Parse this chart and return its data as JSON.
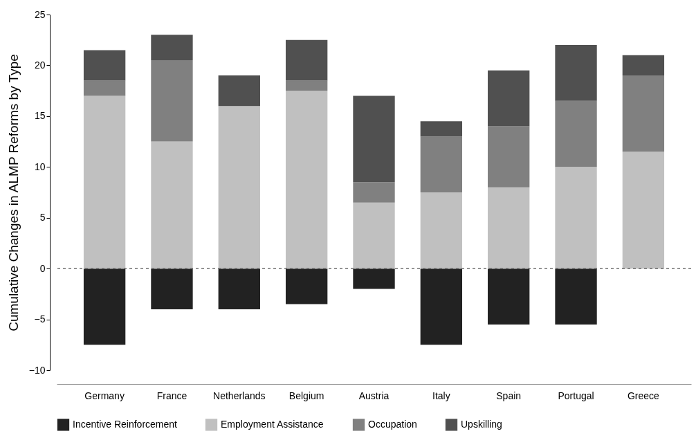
{
  "chart_data": {
    "type": "bar",
    "stacked": true,
    "ylabel": "Cumulative Changes in ALMP Reforms by Type",
    "categories": [
      "Germany",
      "France",
      "Netherlands",
      "Belgium",
      "Austria",
      "Italy",
      "Spain",
      "Portugal",
      "Greece"
    ],
    "series": [
      {
        "name": "Incentive Reinforcement",
        "color": "#222222",
        "values": [
          -7.5,
          -4,
          -4,
          -3.5,
          -2,
          -7.5,
          -5.5,
          -5.5,
          null
        ]
      },
      {
        "name": "Employment Assistance",
        "color": "#c0c0c0",
        "values": [
          17,
          12.5,
          16,
          17.5,
          6.5,
          7.5,
          8,
          10,
          11.5
        ]
      },
      {
        "name": "Occupation",
        "color": "#808080",
        "values": [
          1.5,
          8,
          0,
          1,
          2,
          5.5,
          6,
          6.5,
          7.5
        ]
      },
      {
        "name": "Upskilling",
        "color": "#505050",
        "values": [
          3,
          2.5,
          3,
          4,
          8.5,
          1.5,
          5.5,
          5.5,
          2
        ]
      }
    ],
    "ylim": [
      -10,
      25
    ],
    "yticks": [
      {
        "value": -10,
        "label": "−10"
      },
      {
        "value": -5,
        "label": "−5"
      },
      0,
      5,
      10,
      15,
      20,
      25
    ],
    "ref_lines": [
      {
        "axis": "y",
        "value": 0,
        "color": "#555555",
        "line_style": "dashed"
      }
    ],
    "grid": false,
    "legend": "bottom"
  }
}
